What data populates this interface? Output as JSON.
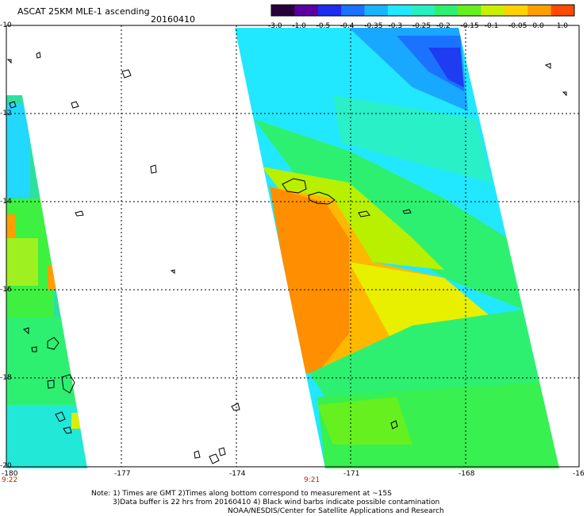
{
  "header": {
    "title": "ASCAT 25KM MLE-1 ascending",
    "date": "20160410"
  },
  "colorbar": {
    "labels": [
      "-3.0",
      "-1.0",
      "-0.5",
      "-0.4",
      "-0.35",
      "-0.3",
      "-0.25",
      "-0.2",
      "-0.15",
      "-0.1",
      "-0.05",
      "0.0",
      "1.0"
    ],
    "colors": [
      "#2a003a",
      "#5a00a0",
      "#1e2cf0",
      "#1a72ff",
      "#19b4ff",
      "#22e8ff",
      "#27f0c0",
      "#2ef070",
      "#66f020",
      "#c8f000",
      "#ffd200",
      "#ff9e00",
      "#ff4a00"
    ]
  },
  "axes": {
    "y_labels": [
      "-10",
      "-12",
      "-14",
      "-16",
      "-18",
      "-20"
    ],
    "x_labels": [
      "-180",
      "-177",
      "-174",
      "-171",
      "-168",
      "-16"
    ],
    "time_labels": [
      "9:22",
      "9:21"
    ]
  },
  "notes": {
    "line1": "Note: 1) Times are GMT 2)Times along bottom correspond to measurement at ~15S",
    "line2": "3)Data buffer is 22 hrs from 20160410 4) Black wind barbs indicate possible contamination",
    "line3": "NOAA/NESDIS/Center for Satellite Applications and Research"
  }
}
